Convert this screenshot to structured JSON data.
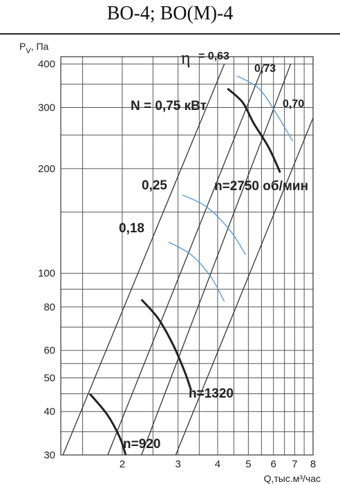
{
  "chart_data": {
    "type": "line",
    "title": "ВО-4; ВО(М)-4",
    "xlabel": "Q,тыс.м³/час",
    "ylabel_main": "P",
    "ylabel_sub": "V",
    "ylabel_unit": ", Па",
    "xscale": "log",
    "yscale": "log",
    "xlim": [
      1.28,
      8
    ],
    "ylim": [
      30,
      420
    ],
    "grid": true,
    "x_ticks": [
      2,
      3,
      4,
      5,
      6,
      7,
      8
    ],
    "x_tick_labels": [
      "2",
      "3",
      "4",
      "5",
      "6",
      "7",
      "8"
    ],
    "y_ticks": [
      30,
      40,
      50,
      60,
      80,
      100,
      200,
      300,
      400
    ],
    "y_tick_labels": [
      "30",
      "40",
      "50",
      "60",
      "80",
      "100",
      "200",
      "300",
      "400"
    ],
    "x_gridlines": [
      1.5,
      2,
      2.5,
      3,
      3.5,
      4,
      4.5,
      5,
      5.5,
      6,
      6.5,
      7,
      7.5,
      8
    ],
    "y_gridlines": [
      30,
      35,
      40,
      45,
      50,
      55,
      60,
      70,
      80,
      90,
      100,
      150,
      200,
      250,
      300,
      350,
      400
    ],
    "system_lines": [
      {
        "points": [
          [
            1.3,
            30
          ],
          [
            4.2,
            400
          ]
        ]
      },
      {
        "points": [
          [
            1.8,
            30
          ],
          [
            5.6,
            400
          ]
        ]
      },
      {
        "points": [
          [
            2.3,
            30
          ],
          [
            6.8,
            400
          ]
        ]
      },
      {
        "points": [
          [
            2.95,
            30
          ],
          [
            8.0,
            280
          ]
        ]
      }
    ],
    "series": [
      {
        "name": "n=2750 об/мин",
        "points": [
          [
            4.3,
            340
          ],
          [
            4.8,
            310
          ],
          [
            5.2,
            270
          ],
          [
            5.8,
            230
          ],
          [
            6.3,
            195
          ]
        ]
      },
      {
        "name": "n=1320",
        "points": [
          [
            2.3,
            84
          ],
          [
            2.6,
            74
          ],
          [
            2.9,
            62
          ],
          [
            3.15,
            52
          ],
          [
            3.3,
            46
          ]
        ]
      },
      {
        "name": "n=920",
        "points": [
          [
            1.58,
            45
          ],
          [
            1.8,
            39
          ],
          [
            1.97,
            33.5
          ],
          [
            2.05,
            30
          ]
        ]
      }
    ],
    "efficiency_curves": [
      {
        "points": [
          [
            4.6,
            370
          ],
          [
            5.4,
            340
          ],
          [
            6.1,
            290
          ],
          [
            6.9,
            240
          ]
        ]
      },
      {
        "points": [
          [
            3.1,
            168
          ],
          [
            3.7,
            155
          ],
          [
            4.4,
            132
          ],
          [
            4.9,
            113
          ]
        ]
      },
      {
        "points": [
          [
            2.8,
            123
          ],
          [
            3.3,
            113
          ],
          [
            3.8,
            98
          ],
          [
            4.2,
            83
          ]
        ]
      }
    ],
    "annotations": {
      "eta_symbol": "η",
      "eta_063": "= 0,63",
      "eta_073": "0,73",
      "eta_070": "0,70",
      "power_075": "N = 0,75 кВт",
      "power_025": "0,25",
      "power_018": "0,18",
      "speed_2750": "n=2750 об/мин",
      "speed_1320": "n=1320",
      "speed_920": "n=920"
    },
    "colors": {
      "grid": "#555555",
      "curve": "#222222",
      "efficiency": "#5b9bd5"
    }
  }
}
